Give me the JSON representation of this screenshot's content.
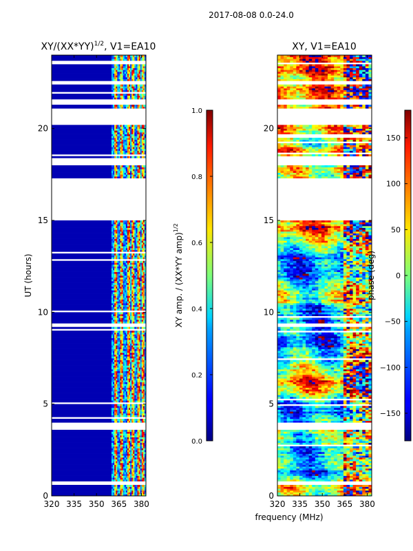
{
  "figure": {
    "suptitle": "2017-08-08 0.0-24.0",
    "shared_xlabel": "frequency (MHz)"
  },
  "chart_data": [
    {
      "type": "heatmap",
      "title_text": "XY/(XX*YY)",
      "title_sup": "1/2",
      "title_suffix": ", V1=EA10",
      "xlabel": "",
      "ylabel": "UT (hours)",
      "xlim": [
        320,
        383
      ],
      "ylim": [
        0,
        24
      ],
      "xticks": [
        320,
        335,
        350,
        365,
        380
      ],
      "yticks": [
        0,
        5,
        10,
        15,
        20
      ],
      "colormap": "jet",
      "colorbar": {
        "label_text": "XY amp. / (XX*YY amp)",
        "label_sup": "1/2",
        "range": [
          0.0,
          1.0
        ],
        "ticks": [
          "0.0",
          "0.2",
          "0.4",
          "0.6",
          "0.8",
          "1.0"
        ]
      },
      "rows_per_hour": 10,
      "rfi_band_mhz": [
        360,
        383
      ],
      "strong_channels_mhz": [
        362,
        366,
        371,
        374,
        378,
        381
      ],
      "flagged_ut_ranges": [
        [
          0.6,
          0.8
        ],
        [
          3.6,
          4.0
        ],
        [
          9.2,
          9.4
        ],
        [
          15.0,
          17.3
        ],
        [
          18.0,
          18.4
        ],
        [
          20.2,
          21.1
        ],
        [
          21.3,
          21.6
        ],
        [
          22.4,
          22.6
        ]
      ]
    },
    {
      "type": "heatmap",
      "title": "XY, V1=EA10",
      "xlabel": "",
      "ylabel": "",
      "xlim": [
        320,
        383
      ],
      "ylim": [
        0,
        24
      ],
      "xticks": [
        320,
        335,
        350,
        365,
        380
      ],
      "yticks": [
        0,
        5,
        10,
        15,
        20
      ],
      "colormap": "jet",
      "colorbar": {
        "label": "phase (deg)",
        "range": [
          -180,
          180
        ],
        "ticks": [
          "150",
          "100",
          "50",
          "0",
          "−50",
          "−100",
          "−150"
        ]
      },
      "rows_per_hour": 10,
      "flagged_ut_ranges": [
        [
          0.6,
          0.8
        ],
        [
          3.6,
          4.0
        ],
        [
          9.2,
          9.4
        ],
        [
          15.0,
          17.3
        ],
        [
          18.0,
          18.4
        ],
        [
          20.2,
          21.1
        ],
        [
          21.3,
          21.6
        ],
        [
          22.4,
          22.6
        ]
      ]
    }
  ]
}
